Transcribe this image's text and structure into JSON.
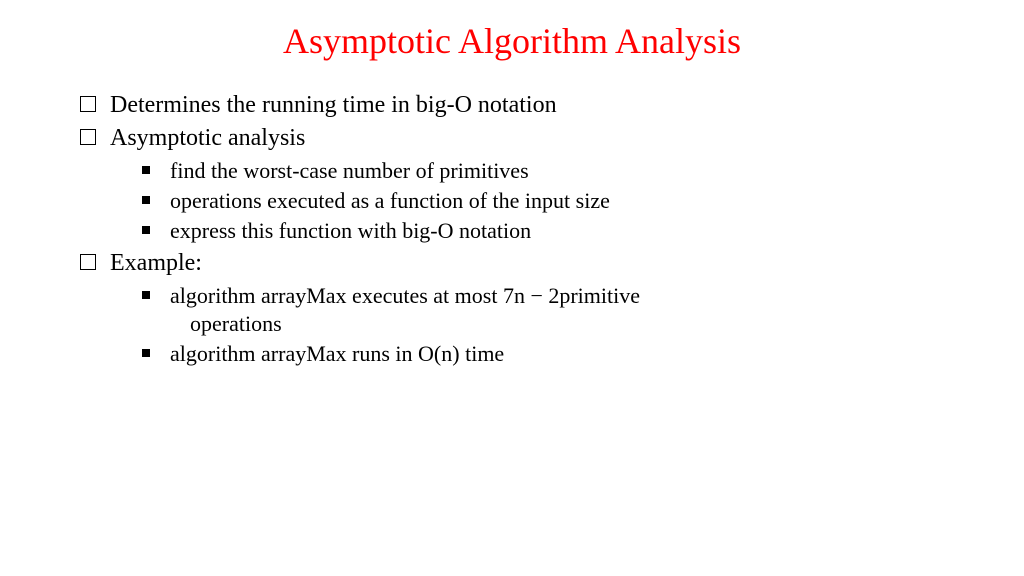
{
  "title": "Asymptotic Algorithm Analysis",
  "colors": {
    "title": "#ff0000",
    "text": "#000000",
    "background": "#ffffff"
  },
  "typography": {
    "title_fontsize": 36,
    "level1_fontsize": 24,
    "level2_fontsize": 22,
    "font_family": "Times New Roman"
  },
  "bullets": {
    "level1": {
      "type": "hollow-square",
      "size": 16
    },
    "level2": {
      "type": "filled-square",
      "size": 8
    }
  },
  "items": [
    {
      "level": 1,
      "text": "Determines the running time in big-O notation"
    },
    {
      "level": 1,
      "text": "Asymptotic analysis"
    },
    {
      "level": 2,
      "text": "find the worst-case number of primitives"
    },
    {
      "level": 2,
      "text": "operations executed as a function of the input size"
    },
    {
      "level": 2,
      "text": "express this function with big-O notation"
    },
    {
      "level": 1,
      "text": "Example:"
    },
    {
      "level": 2,
      "text": "algorithm arrayMax executes at most 7n − 2primitive"
    },
    {
      "level": 0,
      "text": "operations"
    },
    {
      "level": 2,
      "text": "algorithm arrayMax runs in O(n) time"
    }
  ]
}
